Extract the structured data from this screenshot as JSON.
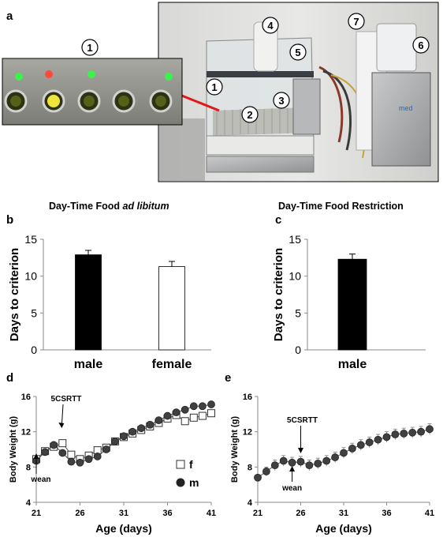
{
  "figure": {
    "panel_letters": {
      "a": "a",
      "b": "b",
      "c": "c",
      "d": "d",
      "e": "e"
    },
    "heading_b_prefix": "Day-Time Food ",
    "heading_b_italic": "ad libitum",
    "heading_c": "Day-Time Food Restriction",
    "photo_labels": [
      "1",
      "2",
      "3",
      "4",
      "5",
      "6",
      "7"
    ],
    "inset_label": "1",
    "brand_text": "med"
  },
  "chart_data": [
    {
      "id": "b",
      "type": "bar",
      "ylabel": "Days to criterion",
      "yticks": [
        0,
        5,
        10,
        15
      ],
      "ylim": [
        0,
        15
      ],
      "categories": [
        "male",
        "female"
      ],
      "values": [
        12.9,
        11.3
      ],
      "errors": [
        0.6,
        0.7
      ],
      "colors": [
        "#000000",
        "#ffffff"
      ]
    },
    {
      "id": "c",
      "type": "bar",
      "ylabel": "Days to criterion",
      "yticks": [
        0,
        5,
        10,
        15
      ],
      "ylim": [
        0,
        15
      ],
      "categories": [
        "male"
      ],
      "values": [
        12.3
      ],
      "errors": [
        0.7
      ],
      "colors": [
        "#000000"
      ]
    },
    {
      "id": "d",
      "type": "line",
      "ylabel": "Body Weight (g)",
      "xlabel": "Age (days)",
      "xticks": [
        21,
        26,
        31,
        36,
        41
      ],
      "yticks": [
        4,
        8,
        12,
        16
      ],
      "xlim": [
        21,
        41
      ],
      "ylim": [
        4,
        16
      ],
      "x": [
        21,
        22,
        23,
        24,
        25,
        26,
        27,
        28,
        29,
        30,
        31,
        32,
        33,
        34,
        35,
        36,
        37,
        38,
        39,
        40,
        41
      ],
      "series": [
        {
          "name": "f",
          "marker": "square",
          "values": [
            8.9,
            9.8,
            10.3,
            10.7,
            9.4,
            8.9,
            9.3,
            9.9,
            10.2,
            10.9,
            11.4,
            11.8,
            12.2,
            12.6,
            13.0,
            13.5,
            13.9,
            13.2,
            13.6,
            13.8,
            14.1
          ]
        },
        {
          "name": "m",
          "marker": "circle",
          "values": [
            8.7,
            9.7,
            10.5,
            9.6,
            8.6,
            8.5,
            8.9,
            9.2,
            10.0,
            10.9,
            11.5,
            12.0,
            12.4,
            12.8,
            13.3,
            13.8,
            14.2,
            14.5,
            14.9,
            14.9,
            15.1
          ]
        }
      ],
      "annotations": [
        {
          "text": "5CSRTT",
          "x": 24
        },
        {
          "text": "wean",
          "x": 21
        }
      ]
    },
    {
      "id": "e",
      "type": "line",
      "ylabel": "Body Weight (g)",
      "xlabel": "Age (days)",
      "xticks": [
        21,
        26,
        31,
        36,
        41
      ],
      "yticks": [
        4,
        8,
        12,
        16
      ],
      "xlim": [
        21,
        41
      ],
      "ylim": [
        4,
        16
      ],
      "x": [
        21,
        22,
        23,
        24,
        25,
        26,
        27,
        28,
        29,
        30,
        31,
        32,
        33,
        34,
        35,
        36,
        37,
        38,
        39,
        40,
        41
      ],
      "series": [
        {
          "name": "",
          "marker": "circle",
          "values": [
            6.8,
            7.5,
            8.2,
            8.7,
            8.5,
            8.6,
            8.2,
            8.4,
            8.7,
            9.1,
            9.6,
            10.1,
            10.5,
            10.8,
            11.1,
            11.4,
            11.7,
            11.8,
            11.9,
            12.0,
            12.3
          ],
          "errors": [
            0.3,
            0.5,
            0.6,
            0.6,
            0.6,
            0.6,
            0.6,
            0.6,
            0.6,
            0.6,
            0.6,
            0.6,
            0.6,
            0.6,
            0.6,
            0.6,
            0.6,
            0.6,
            0.6,
            0.6,
            0.6
          ]
        }
      ],
      "annotations": [
        {
          "text": "5CSRTT",
          "x": 26
        },
        {
          "text": "wean",
          "x": 25
        }
      ]
    }
  ]
}
